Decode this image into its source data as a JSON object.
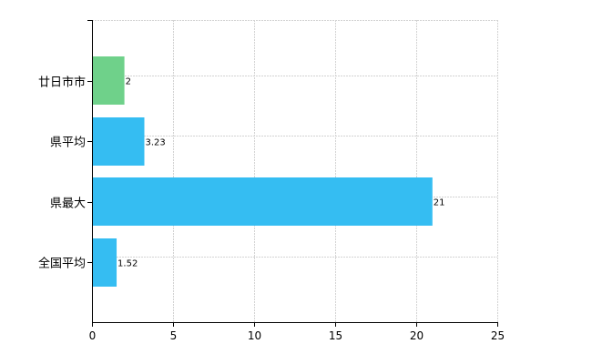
{
  "chart_data": {
    "type": "bar",
    "orientation": "horizontal",
    "categories": [
      "廿日市市",
      "県平均",
      "県最大",
      "全国平均"
    ],
    "values": [
      2,
      3.23,
      21,
      1.52
    ],
    "data_labels": [
      "2",
      "3.23",
      "21",
      "1.52"
    ],
    "bar_colors": [
      "#6fd18a",
      "#35bdf2",
      "#35bdf2",
      "#35bdf2"
    ],
    "xlim": [
      0,
      25
    ],
    "x_ticks": [
      0,
      5,
      10,
      15,
      20,
      25
    ],
    "x_tick_labels": [
      "0",
      "5",
      "10",
      "15",
      "20",
      "25"
    ],
    "grid": true,
    "title": "",
    "xlabel": "",
    "ylabel": ""
  }
}
